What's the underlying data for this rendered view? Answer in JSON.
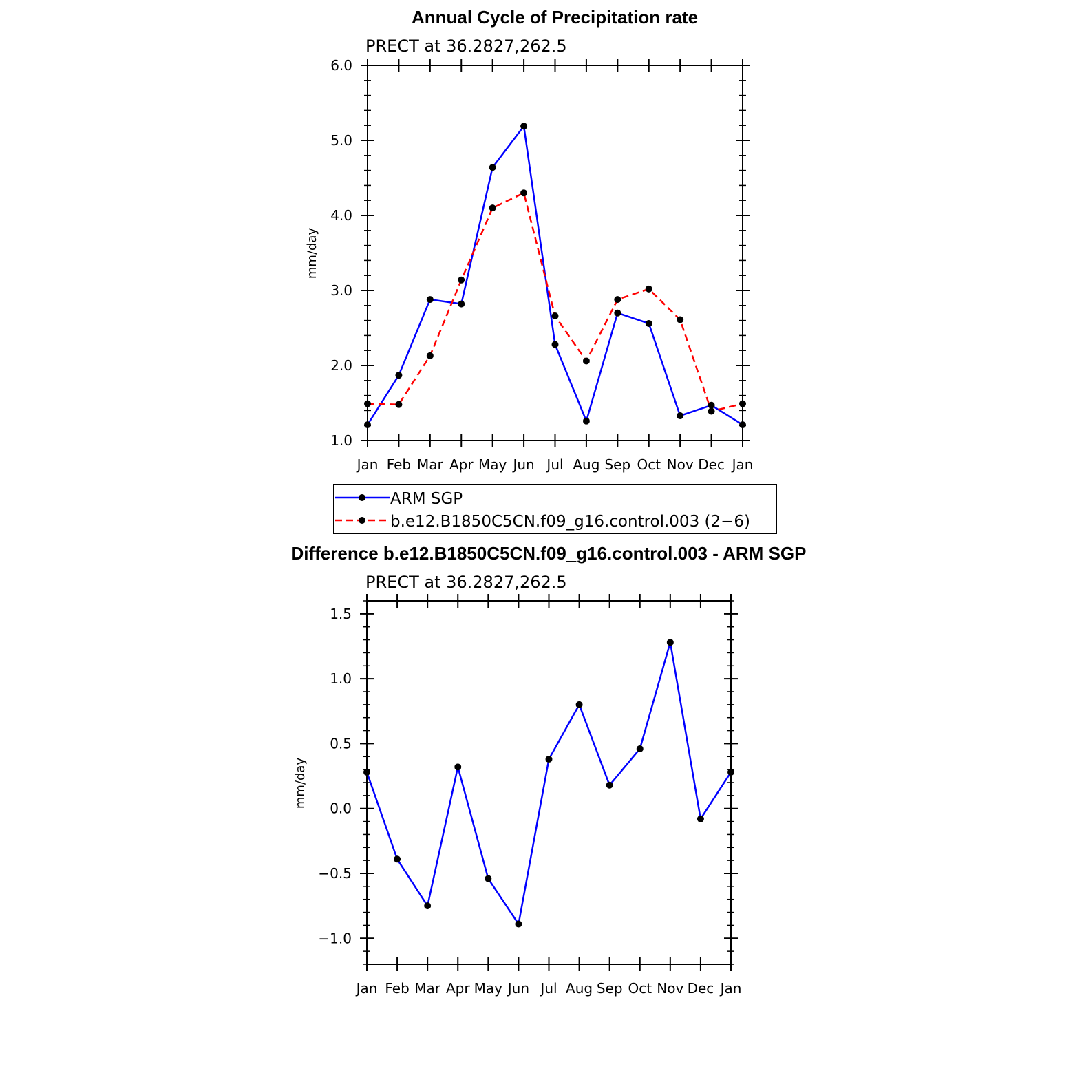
{
  "chart_data": [
    {
      "type": "line",
      "title": "Annual Cycle of Precipitation rate",
      "subtitle": "PRECT at 36.2827,262.5",
      "ylabel": "mm/day",
      "ylim": [
        1.0,
        6.0
      ],
      "yticks": [
        "1.0",
        "2.0",
        "3.0",
        "4.0",
        "5.0",
        "6.0"
      ],
      "categories": [
        "Jan",
        "Feb",
        "Mar",
        "Apr",
        "May",
        "Jun",
        "Jul",
        "Aug",
        "Sep",
        "Oct",
        "Nov",
        "Dec",
        "Jan"
      ],
      "series": [
        {
          "name": "ARM SGP",
          "color": "#0000ff",
          "dash": "solid",
          "values": [
            1.21,
            1.87,
            2.88,
            2.82,
            4.64,
            5.19,
            2.28,
            1.26,
            2.7,
            2.56,
            1.33,
            1.47,
            1.21
          ]
        },
        {
          "name": "b.e12.B1850C5CN.f09_g16.control.003 (2−6)",
          "color": "#ff0000",
          "dash": "dashed",
          "values": [
            1.49,
            1.48,
            2.13,
            3.14,
            4.1,
            4.3,
            2.66,
            2.06,
            2.88,
            3.02,
            2.61,
            1.39,
            1.49
          ]
        }
      ],
      "legend": "bottom"
    },
    {
      "type": "line",
      "title": "Difference b.e12.B1850C5CN.f09_g16.control.003 - ARM SGP",
      "subtitle": "PRECT at 36.2827,262.5",
      "ylabel": "mm/day",
      "ylim": [
        -1.2,
        1.6
      ],
      "yticks": [
        "−1.0",
        "−0.5",
        "0.0",
        "0.5",
        "1.0",
        "1.5"
      ],
      "ytick_values": [
        -1.0,
        -0.5,
        0.0,
        0.5,
        1.0,
        1.5
      ],
      "categories": [
        "Jan",
        "Feb",
        "Mar",
        "Apr",
        "May",
        "Jun",
        "Jul",
        "Aug",
        "Sep",
        "Oct",
        "Nov",
        "Dec",
        "Jan"
      ],
      "series": [
        {
          "color": "#0000ff",
          "dash": "solid",
          "values": [
            0.28,
            -0.39,
            -0.75,
            0.32,
            -0.54,
            -0.89,
            0.38,
            0.8,
            0.18,
            0.46,
            1.28,
            -0.08,
            0.28
          ]
        }
      ]
    }
  ]
}
